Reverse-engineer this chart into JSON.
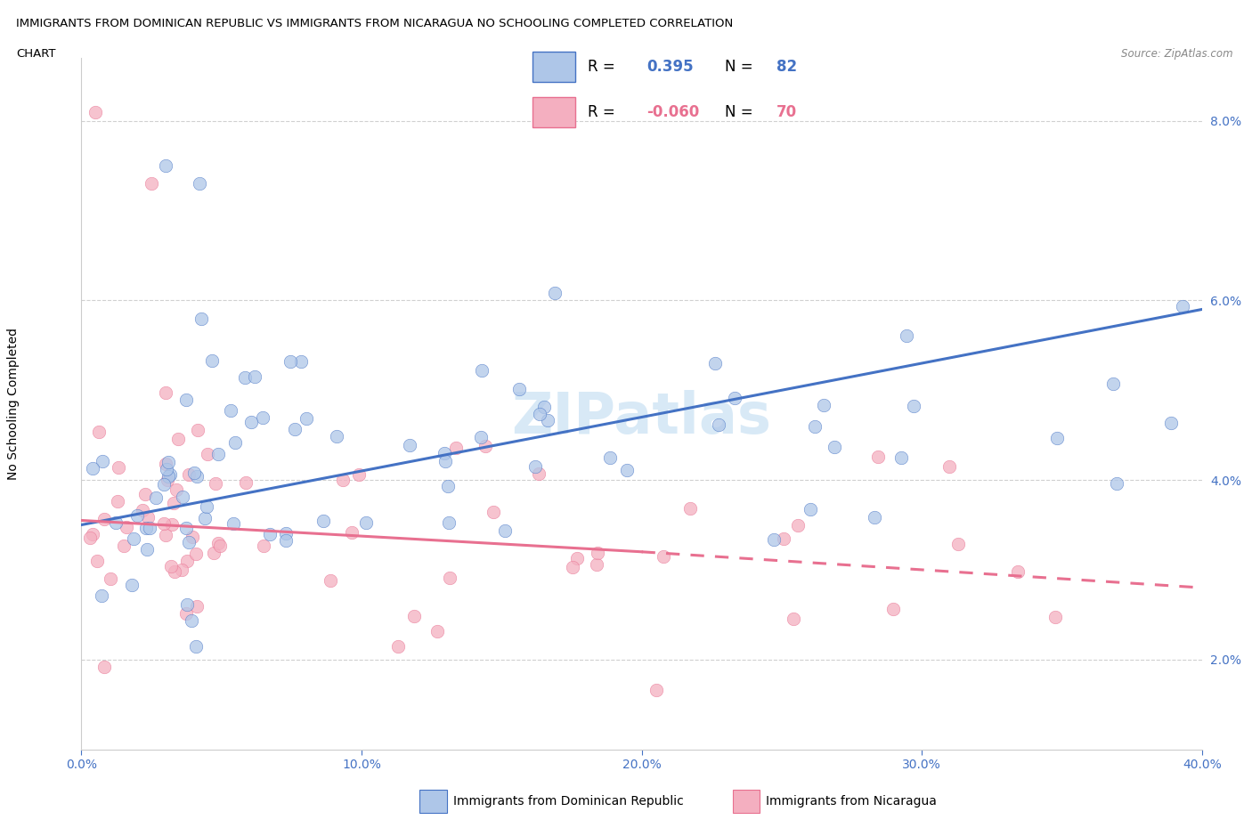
{
  "title_line1": "IMMIGRANTS FROM DOMINICAN REPUBLIC VS IMMIGRANTS FROM NICARAGUA NO SCHOOLING COMPLETED CORRELATION",
  "title_line2": "CHART",
  "source": "Source: ZipAtlas.com",
  "ylabel": "No Schooling Completed",
  "xlabel_ticks": [
    "0.0%",
    "10.0%",
    "20.0%",
    "30.0%",
    "40.0%"
  ],
  "xlabel_vals": [
    0.0,
    10.0,
    20.0,
    30.0,
    40.0
  ],
  "ytick_labels": [
    "2.0%",
    "4.0%",
    "6.0%",
    "8.0%"
  ],
  "ytick_vals": [
    2.0,
    4.0,
    6.0,
    8.0
  ],
  "xlim": [
    0.0,
    40.0
  ],
  "ylim": [
    1.0,
    8.7
  ],
  "R_blue": 0.395,
  "N_blue": 82,
  "R_pink": -0.06,
  "N_pink": 70,
  "color_blue": "#aec6e8",
  "color_pink": "#f4afc0",
  "color_blue_line": "#4472c4",
  "color_pink_line": "#e87090",
  "legend_label_blue": "Immigrants from Dominican Republic",
  "legend_label_pink": "Immigrants from Nicaragua",
  "watermark": "ZIPatlas",
  "blue_line_start_y": 3.5,
  "blue_line_end_y": 5.9,
  "pink_line_start_y": 3.55,
  "pink_line_solid_end_x": 20.0,
  "pink_line_solid_end_y": 3.2,
  "pink_line_dashed_end_x": 40.0,
  "pink_line_dashed_end_y": 2.8
}
